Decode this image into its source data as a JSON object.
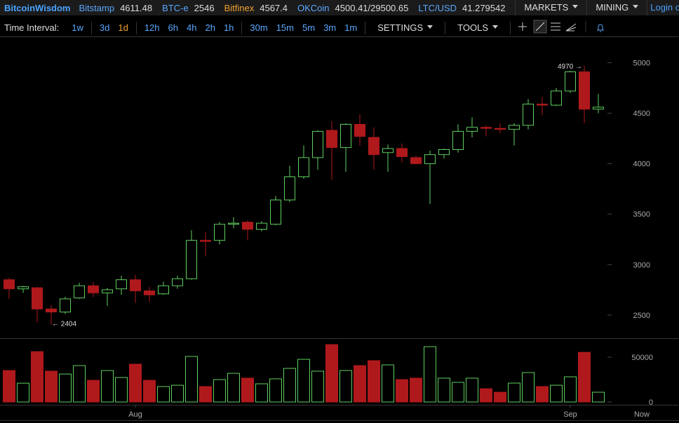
{
  "header": {
    "brand": "BitcoinWisdom",
    "tickers": [
      {
        "name": "Bitstamp",
        "price": "4611.48",
        "color": "#5aa8ff"
      },
      {
        "name": "BTC-e",
        "price": "2546",
        "color": "#5aa8ff"
      },
      {
        "name": "Bitfinex",
        "price": "4567.4",
        "color": "#f0a030"
      },
      {
        "name": "OKCoin",
        "price": "4500.41/29500.65",
        "color": "#5aa8ff"
      },
      {
        "name": "LTC/USD",
        "price": "41.279542",
        "color": "#5aa8ff"
      }
    ],
    "menus": [
      "MARKETS",
      "MINING"
    ],
    "login": "Login o"
  },
  "toolbar": {
    "label": "Time Interval:",
    "intervals": [
      [
        "1w"
      ],
      [
        "3d",
        "1d"
      ],
      [
        "12h",
        "6h",
        "4h",
        "2h",
        "1h"
      ],
      [
        "30m",
        "15m",
        "5m",
        "3m",
        "1m"
      ]
    ],
    "active_interval": "1d",
    "menus": [
      "SETTINGS",
      "TOOLS"
    ]
  },
  "chart_data": {
    "type": "candlestick",
    "categories": [
      null,
      null,
      null,
      null,
      null,
      null,
      null,
      null,
      null,
      "Aug",
      null,
      null,
      null,
      null,
      null,
      null,
      null,
      null,
      null,
      null,
      null,
      null,
      null,
      null,
      null,
      null,
      null,
      null,
      null,
      null,
      null,
      null,
      null,
      null,
      null,
      null,
      null,
      null,
      null,
      null,
      "Sep",
      null,
      null
    ],
    "x_end_label": "Now",
    "open": [
      2850,
      2760,
      2770,
      2560,
      2530,
      2670,
      2790,
      2720,
      2760,
      2850,
      2740,
      2710,
      2790,
      2860,
      3240,
      3240,
      3400,
      3420,
      3350,
      3400,
      3640,
      3870,
      4060,
      4330,
      4160,
      4390,
      4260,
      4110,
      4150,
      4060,
      4000,
      4090,
      4140,
      4320,
      4360,
      4350,
      4340,
      4380,
      4590,
      4580,
      4720,
      4910,
      4540
    ],
    "high": [
      2870,
      2790,
      2780,
      2600,
      2680,
      2820,
      2830,
      2770,
      2890,
      2900,
      2780,
      2830,
      2890,
      3340,
      3320,
      3420,
      3470,
      3440,
      3430,
      3680,
      3980,
      4180,
      4330,
      4420,
      4400,
      4490,
      4360,
      4190,
      4200,
      4080,
      4130,
      4150,
      4390,
      4460,
      4380,
      4400,
      4400,
      4640,
      4660,
      4750,
      4920,
      4970,
      4690
    ],
    "low": [
      2660,
      2720,
      2430,
      2404,
      2510,
      2660,
      2680,
      2590,
      2700,
      2620,
      2630,
      2700,
      2760,
      2850,
      3080,
      3200,
      3360,
      3240,
      3330,
      3390,
      3620,
      3850,
      3940,
      3840,
      3920,
      4180,
      3940,
      3920,
      4010,
      3990,
      3600,
      4050,
      4110,
      4260,
      4270,
      4300,
      4180,
      4340,
      4480,
      4570,
      4700,
      4400,
      4500
    ],
    "close": [
      2760,
      2780,
      2560,
      2530,
      2660,
      2790,
      2720,
      2750,
      2850,
      2740,
      2700,
      2790,
      2860,
      3240,
      3230,
      3400,
      3410,
      3350,
      3410,
      3640,
      3870,
      4060,
      4320,
      4160,
      4390,
      4270,
      4090,
      4150,
      4070,
      4000,
      4090,
      4140,
      4320,
      4360,
      4350,
      4340,
      4380,
      4590,
      4580,
      4720,
      4910,
      4540,
      4560
    ],
    "up_color": "#5fcf5f",
    "down_color": "#b0191c",
    "ylim": [
      2270,
      5240
    ],
    "yticks": [
      2500,
      3000,
      3500,
      4000,
      4500,
      5000
    ],
    "annotations": {
      "high_label": "4970 →",
      "low_label": "← 2404"
    },
    "volume": {
      "values": [
        35100,
        21000,
        56200,
        34400,
        31200,
        40600,
        24200,
        35100,
        27300,
        42200,
        24200,
        17200,
        18700,
        50800,
        17200,
        25000,
        32000,
        26600,
        20300,
        25800,
        37500,
        47600,
        34400,
        64000,
        35100,
        40600,
        46100,
        41400,
        25000,
        26600,
        61700,
        26600,
        21900,
        26600,
        14800,
        10900,
        21100,
        32800,
        17200,
        18700,
        28100,
        55400,
        10900
      ],
      "ylim": [
        0,
        70300
      ],
      "yticks": [
        0,
        50000
      ]
    }
  }
}
